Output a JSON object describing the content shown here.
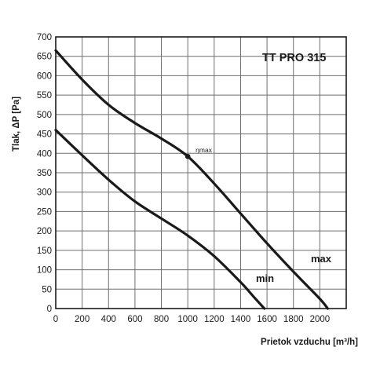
{
  "chart_data": {
    "type": "line",
    "title": "TT PRO 315",
    "xlabel": "Prietok vzduchu  [m³/h]",
    "ylabel": "Tlak, ΔP [Pa]",
    "xlim": [
      0,
      2200
    ],
    "ylim": [
      0,
      700
    ],
    "xticks": [
      0,
      200,
      400,
      600,
      800,
      1000,
      1200,
      1400,
      1600,
      1800,
      2000
    ],
    "yticks": [
      0,
      50,
      100,
      150,
      200,
      250,
      300,
      350,
      400,
      450,
      500,
      550,
      600,
      650,
      700
    ],
    "grid": true,
    "series": [
      {
        "name": "max",
        "x": [
          0,
          200,
          400,
          600,
          800,
          1000,
          1200,
          1400,
          1600,
          1800,
          2000,
          2060
        ],
        "y": [
          665,
          590,
          525,
          478,
          438,
          392,
          322,
          245,
          168,
          95,
          25,
          0
        ]
      },
      {
        "name": "min",
        "x": [
          0,
          200,
          400,
          600,
          800,
          1000,
          1200,
          1400,
          1500,
          1580
        ],
        "y": [
          460,
          395,
          332,
          276,
          232,
          188,
          135,
          68,
          30,
          0
        ]
      }
    ],
    "annotations": [
      {
        "text": "ηmax",
        "x": 1000,
        "y": 392
      }
    ]
  }
}
